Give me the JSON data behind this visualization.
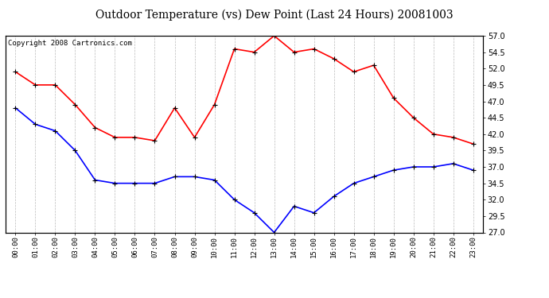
{
  "title": "Outdoor Temperature (vs) Dew Point (Last 24 Hours) 20081003",
  "copyright": "Copyright 2008 Cartronics.com",
  "hours": [
    "00:00",
    "01:00",
    "02:00",
    "03:00",
    "04:00",
    "05:00",
    "06:00",
    "07:00",
    "08:00",
    "09:00",
    "10:00",
    "11:00",
    "12:00",
    "13:00",
    "14:00",
    "15:00",
    "16:00",
    "17:00",
    "18:00",
    "19:00",
    "20:00",
    "21:00",
    "22:00",
    "23:00"
  ],
  "temp": [
    51.5,
    49.5,
    49.5,
    46.5,
    43.0,
    41.5,
    41.5,
    41.0,
    46.0,
    41.5,
    46.5,
    55.0,
    54.5,
    57.0,
    54.5,
    55.0,
    53.5,
    51.5,
    52.5,
    47.5,
    44.5,
    42.0,
    41.5,
    40.5
  ],
  "dewpoint": [
    46.0,
    43.5,
    42.5,
    39.5,
    35.0,
    34.5,
    34.5,
    34.5,
    35.5,
    35.5,
    35.0,
    32.0,
    30.0,
    27.0,
    31.0,
    30.0,
    32.5,
    34.5,
    35.5,
    36.5,
    37.0,
    37.0,
    37.5,
    36.5
  ],
  "temp_color": "#ff0000",
  "dew_color": "#0000ff",
  "bg_color": "#ffffff",
  "grid_color": "#aaaaaa",
  "ylim": [
    27.0,
    57.0
  ],
  "yticks": [
    27.0,
    29.5,
    32.0,
    34.5,
    37.0,
    39.5,
    42.0,
    44.5,
    47.0,
    49.5,
    52.0,
    54.5,
    57.0
  ],
  "title_fontsize": 10,
  "copyright_fontsize": 6.5
}
